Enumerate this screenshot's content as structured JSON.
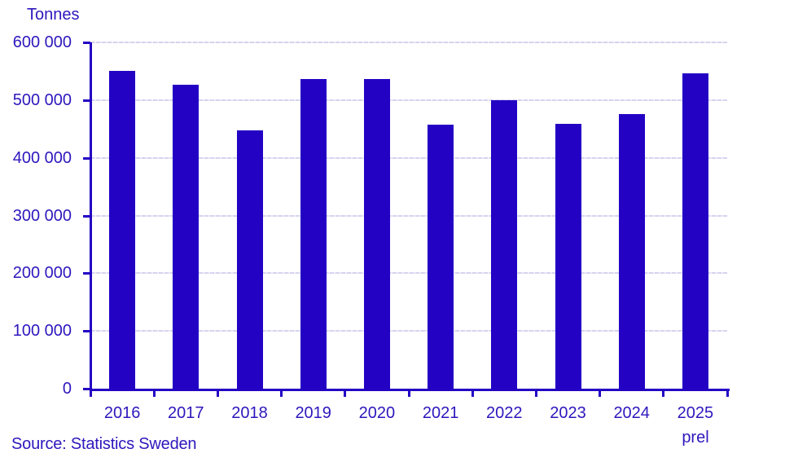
{
  "chart_data": {
    "type": "bar",
    "title": "",
    "unit_label": "Tonnes",
    "categories": [
      "2016",
      "2017",
      "2018",
      "2019",
      "2020",
      "2021",
      "2022",
      "2023",
      "2024",
      "2025"
    ],
    "last_category_suffix": "prel",
    "values": [
      550000,
      527000,
      448000,
      536000,
      536000,
      457000,
      500000,
      459000,
      476000,
      546000
    ],
    "ylim": [
      0,
      600000
    ],
    "ytick_step": 100000,
    "ytick_labels": [
      "0",
      "100 000",
      "200 000",
      "300 000",
      "400 000",
      "500 000",
      "600 000"
    ],
    "grid": "horizontal-dashed",
    "legend": "none",
    "source": "Source: Statistics Sweden",
    "colors": {
      "bar": "#2302c4",
      "text": "#2d17bd",
      "axis": "#2302c4",
      "gridline": "#d6d3ef"
    }
  }
}
